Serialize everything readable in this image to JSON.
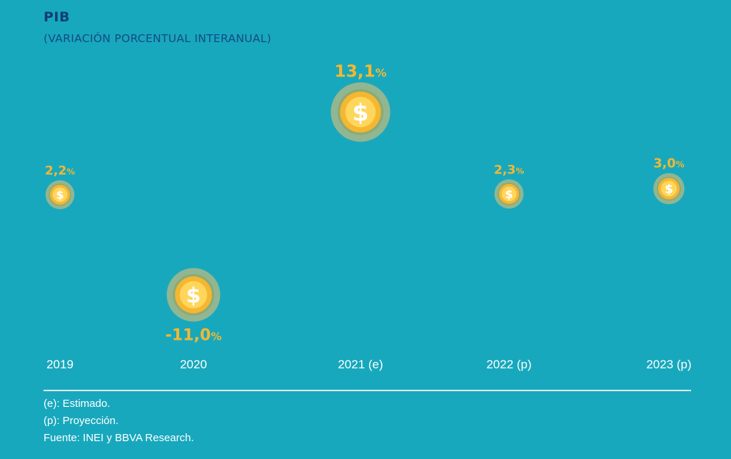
{
  "title": "PIB",
  "subtitle": "(VARIACIÓN PORCENTUAL INTERANUAL)",
  "chart_data": {
    "type": "scatter",
    "categories": [
      "2019",
      "2020",
      "2021 (e)",
      "2022 (p)",
      "2023 (p)"
    ],
    "values": [
      2.2,
      -11.0,
      13.1,
      2.3,
      3.0
    ],
    "value_labels": [
      "2,2",
      "-11,0",
      "13,1",
      "2,3",
      "3,0"
    ],
    "unit": "%",
    "marker": "coin-dollar-icon",
    "marker_symbol": "$",
    "ylim": [
      -11.0,
      13.1
    ],
    "xlabel": "",
    "ylabel": "",
    "grid": false,
    "colors": {
      "background": "#18a8bd",
      "value_label": "#f5b731",
      "coin_outer": "#f5b731",
      "coin_inner": "#ffd65c",
      "coin_halo": "#a7b98b",
      "coin_ring": "#8ea870",
      "axis_label": "#ffffff"
    }
  },
  "notes": [
    "(e): Estimado.",
    "(p): Proyección.",
    "Fuente: INEI y BBVA Research."
  ]
}
